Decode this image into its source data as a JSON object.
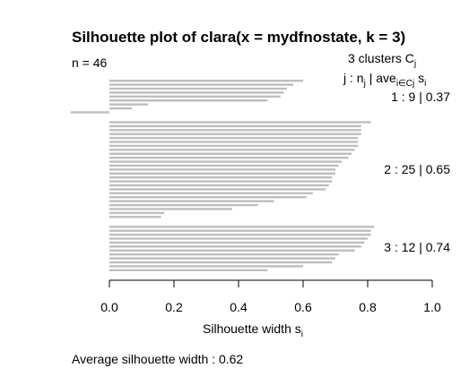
{
  "chart_data": {
    "type": "bar",
    "orientation": "horizontal",
    "title": "Silhouette plot of clara(x = mydfnostate, k = 3)",
    "n_label": "n = 46",
    "xlabel_main": "Silhouette width s",
    "xlabel_sub": "i",
    "xlim": [
      0,
      1
    ],
    "x_ticks": [
      "0.0",
      "0.2",
      "0.4",
      "0.6",
      "0.8",
      "1.0"
    ],
    "x_tick_values": [
      0,
      0.2,
      0.4,
      0.6,
      0.8,
      1.0
    ],
    "legend": {
      "clusters_text": "3  clusters  C",
      "clusters_sub": "j",
      "header_j": "j :  n",
      "header_j_sub": "j",
      "header_ave": " | ave",
      "header_ave_sub": "i∈Cj",
      "header_s": "  s",
      "header_s_sub": "i"
    },
    "clusters": [
      {
        "label": "1 :   9  |  0.37",
        "id": 1,
        "n": 9,
        "avg": 0.37,
        "values": [
          0.6,
          0.57,
          0.55,
          0.54,
          0.53,
          0.49,
          0.12,
          0.07,
          -0.12
        ]
      },
      {
        "label": "2 :   25  |  0.65",
        "id": 2,
        "n": 25,
        "avg": 0.65,
        "values": [
          0.81,
          0.78,
          0.78,
          0.78,
          0.77,
          0.77,
          0.77,
          0.76,
          0.75,
          0.74,
          0.72,
          0.71,
          0.7,
          0.7,
          0.69,
          0.69,
          0.68,
          0.67,
          0.63,
          0.61,
          0.51,
          0.46,
          0.38,
          0.17,
          0.16
        ]
      },
      {
        "label": "3 :   12  |  0.74",
        "id": 3,
        "n": 12,
        "avg": 0.74,
        "values": [
          0.82,
          0.81,
          0.81,
          0.8,
          0.79,
          0.78,
          0.76,
          0.71,
          0.7,
          0.69,
          0.6,
          0.49
        ]
      }
    ],
    "footer": "Average silhouette width :  0.62",
    "bar_color": "#bebebe",
    "grid": false
  }
}
